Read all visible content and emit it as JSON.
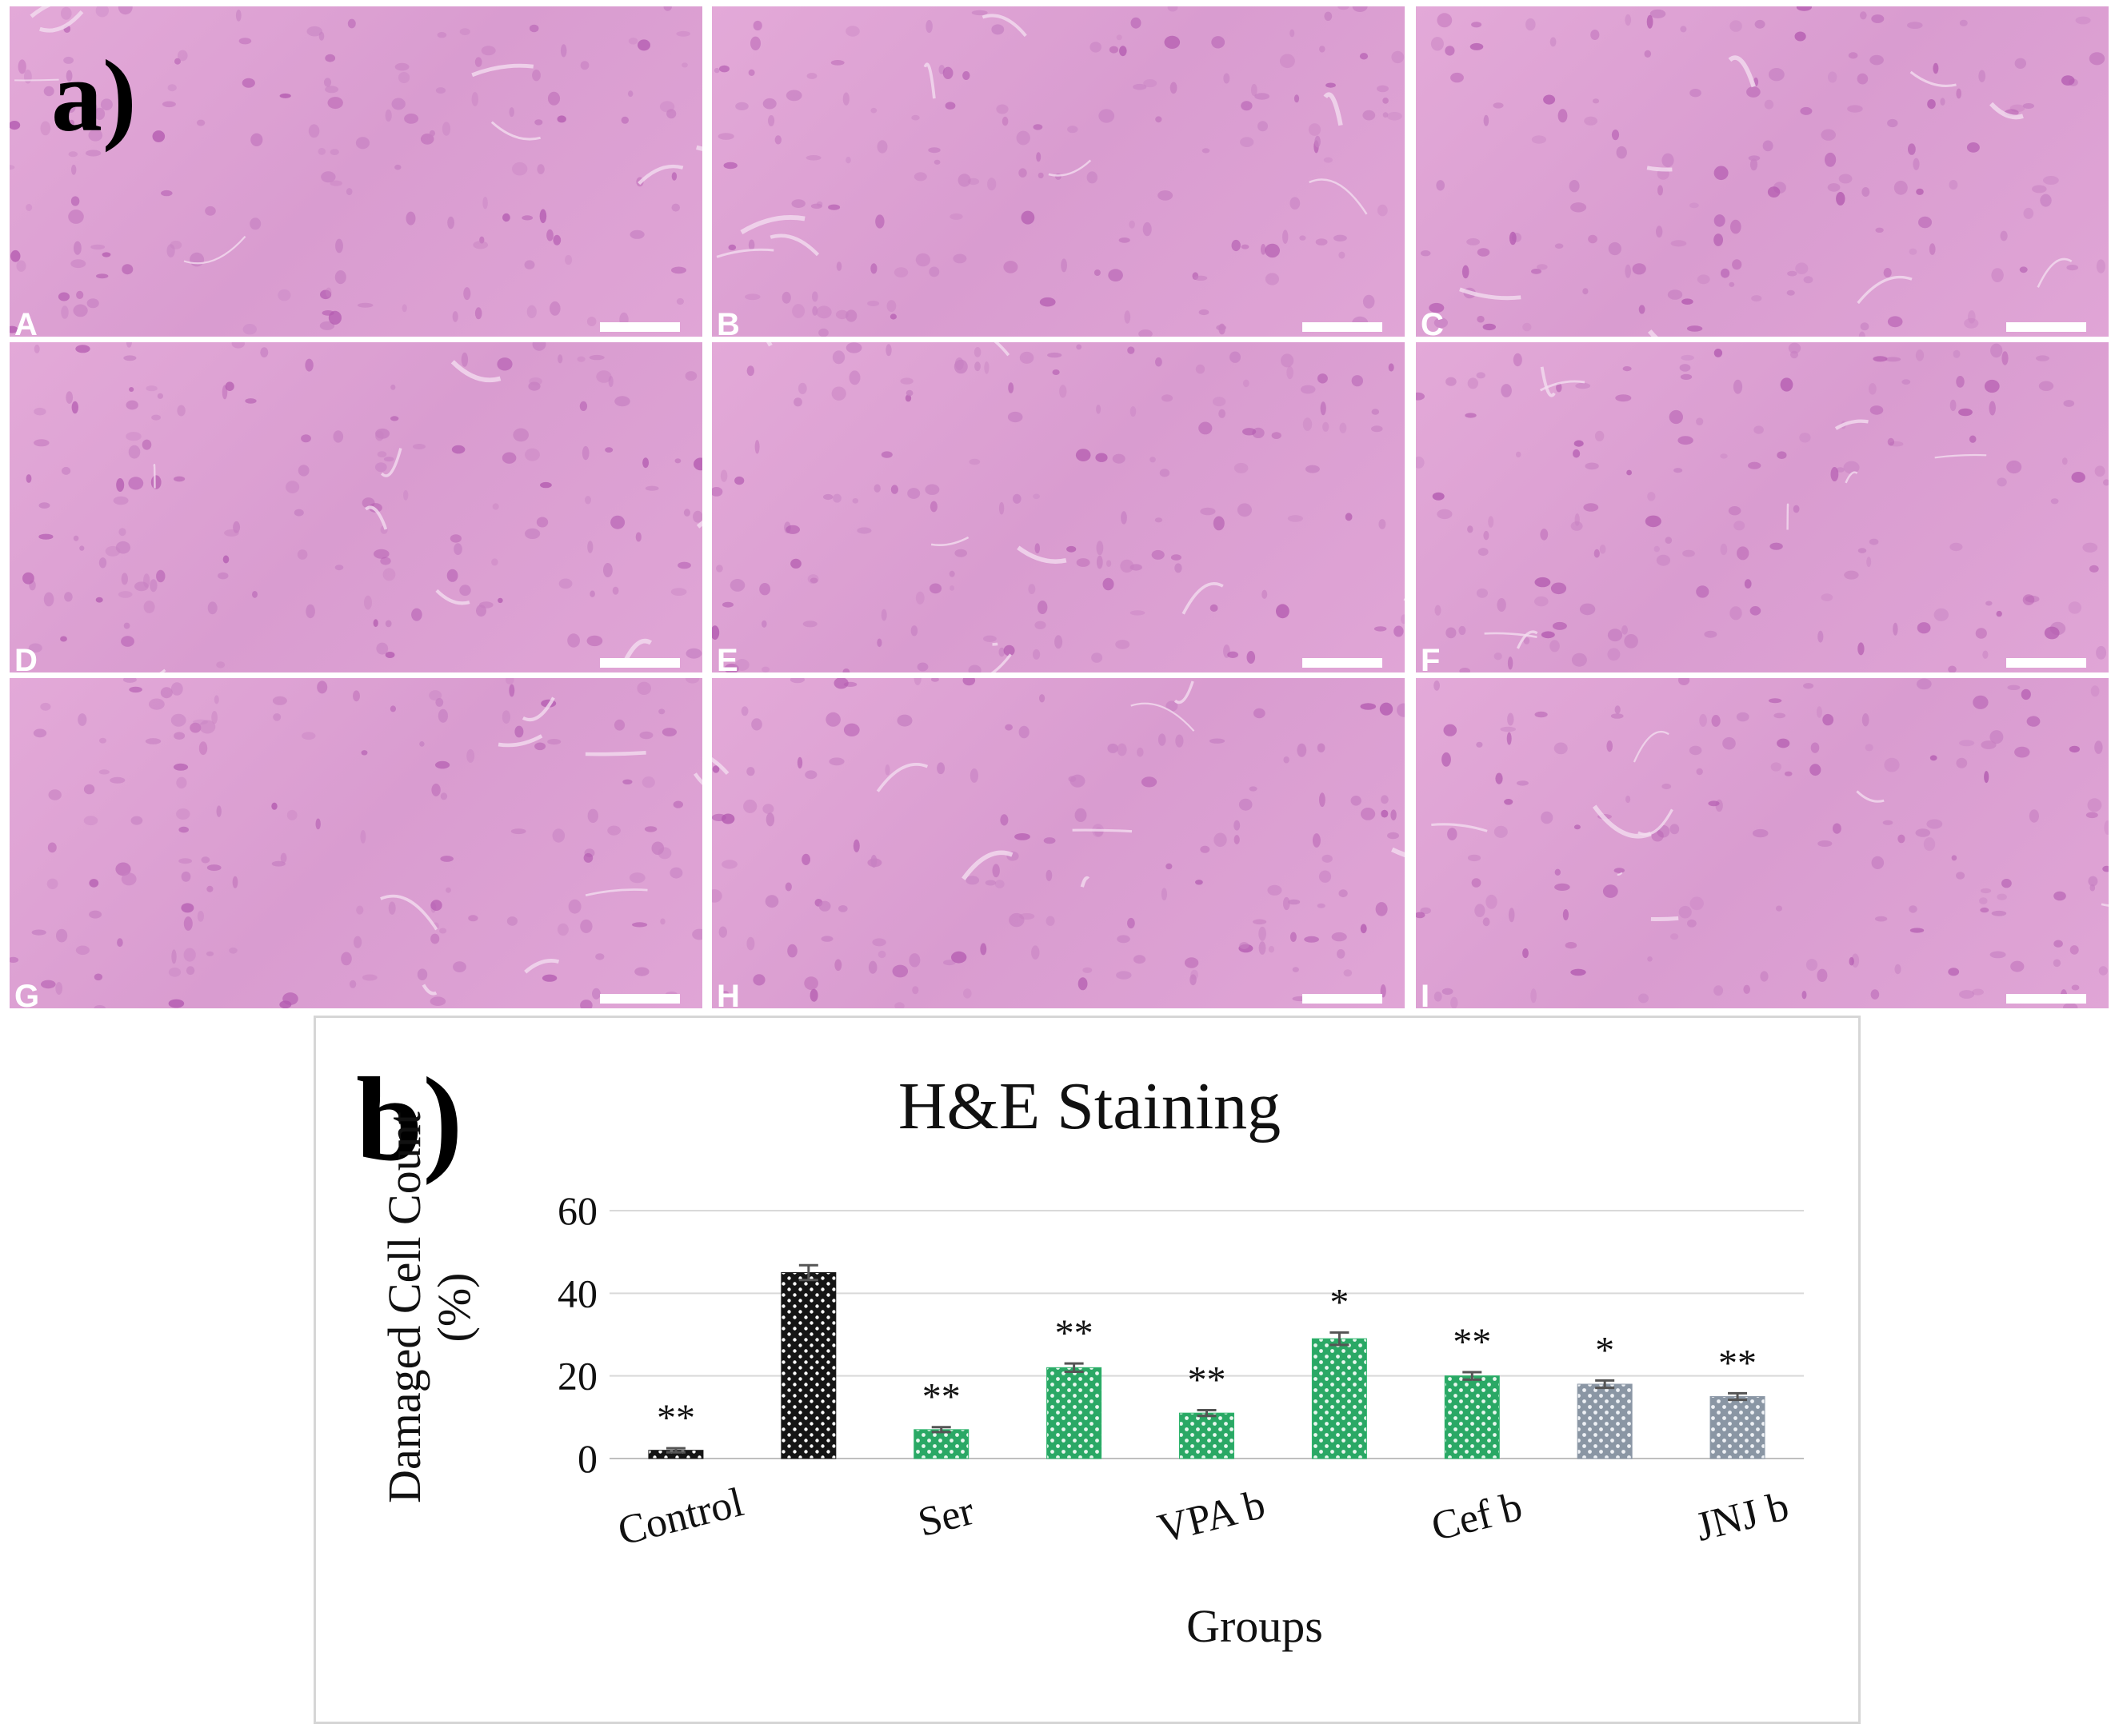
{
  "panel_a": {
    "label": "a)",
    "tiles": [
      {
        "letter": "A"
      },
      {
        "letter": "B"
      },
      {
        "letter": "C"
      },
      {
        "letter": "D"
      },
      {
        "letter": "E"
      },
      {
        "letter": "F"
      },
      {
        "letter": "G"
      },
      {
        "letter": "H"
      },
      {
        "letter": "I"
      }
    ]
  },
  "panel_b": {
    "label": "b)"
  },
  "chart_data": {
    "type": "bar",
    "title": "H&E Staining",
    "xlabel": "Groups",
    "ylabel": "Damaged Cell Count (%)",
    "ylim": [
      0,
      60
    ],
    "yticks": [
      0,
      20,
      40,
      60
    ],
    "grid": true,
    "tick_labels": [
      "Control",
      "Ser",
      "VPA b",
      "Cef b",
      "JNJ b"
    ],
    "values": [
      2,
      45,
      7,
      22,
      11,
      29,
      20,
      18,
      15
    ],
    "errors": [
      0.5,
      1.8,
      0.6,
      1.0,
      0.7,
      1.5,
      0.9,
      0.9,
      0.8
    ],
    "annotations": [
      "**",
      "",
      "**",
      "**",
      "**",
      "*",
      "**",
      "*",
      "**"
    ],
    "bar_colors": [
      "#1a1a1a",
      "#1a1a1a",
      "#2db36b",
      "#2db36b",
      "#2db36b",
      "#2db36b",
      "#2db36b",
      "#8e9aa8",
      "#8e9aa8"
    ]
  }
}
